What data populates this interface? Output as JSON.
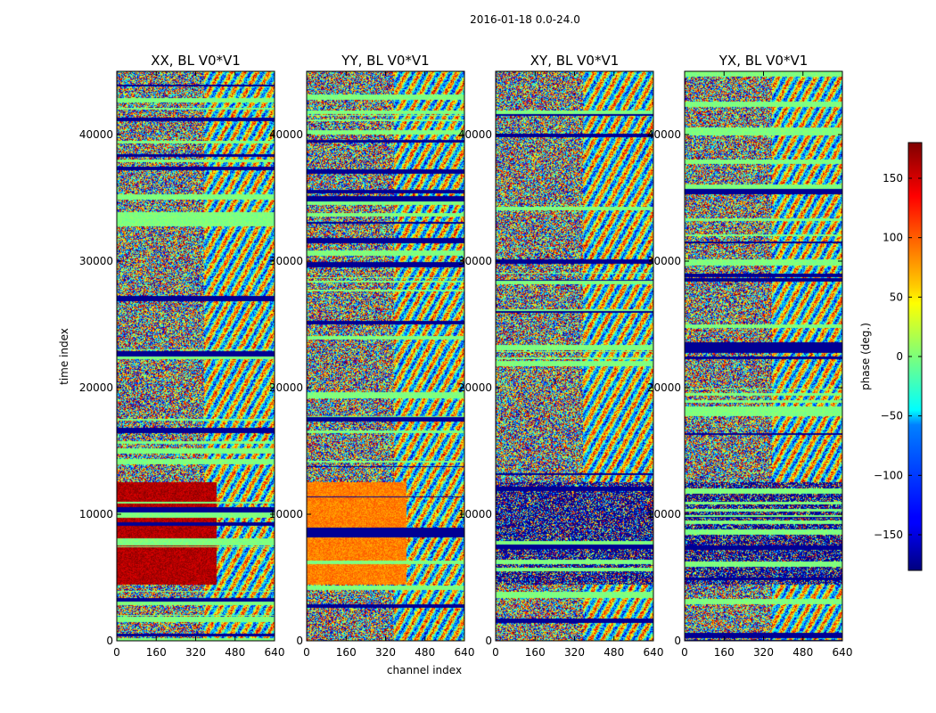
{
  "figure_title": "2016-01-18 0.0-24.0",
  "chart_data": {
    "type": "heatmap",
    "suptitle": "2016-01-18 0.0-24.0",
    "xlabel": "channel index",
    "ylabel": "time index",
    "xlim": [
      0,
      640
    ],
    "ylim": [
      0,
      45000
    ],
    "xticks": [
      0,
      160,
      320,
      480,
      640
    ],
    "yticks": [
      0,
      10000,
      20000,
      30000,
      40000
    ],
    "colorbar": {
      "label": "phase (deg.)",
      "range": [
        -180,
        180
      ],
      "ticks": [
        150,
        100,
        50,
        0,
        -50,
        -100,
        -150
      ],
      "tick_labels": [
        "150",
        "100",
        "50",
        "0",
        "−50",
        "−100",
        "−150"
      ],
      "colormap": "jet"
    },
    "panels": [
      {
        "title": "XX, BL V0*V1"
      },
      {
        "title": "YY, BL V0*V1"
      },
      {
        "title": "XY, BL V0*V1"
      },
      {
        "title": "YX, BL V0*V1"
      }
    ]
  }
}
